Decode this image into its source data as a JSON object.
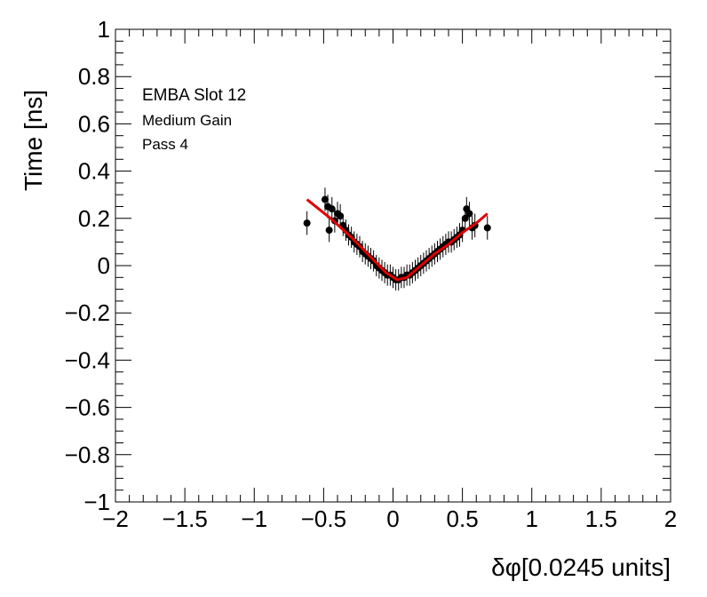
{
  "chart_data": {
    "type": "scatter",
    "xlabel": "δφ[0.0245 units]",
    "ylabel": "Time [ns]",
    "xlim": [
      -2,
      2
    ],
    "ylim": [
      -1,
      1
    ],
    "x_ticks": [
      "−2",
      "−1.5",
      "−1",
      "−0.5",
      "0",
      "0.5",
      "1",
      "1.5",
      "2"
    ],
    "y_ticks": [
      "1",
      "0.8",
      "0.6",
      "0.4",
      "0.2",
      "0",
      "−0.2",
      "−0.4",
      "−0.6",
      "−0.8",
      "−1"
    ],
    "grid": false,
    "annotations": [
      "EMBA Slot 12",
      "Medium Gain",
      "Pass 4"
    ],
    "fit_color": "#e00000",
    "marker_color": "#000000",
    "points": [
      {
        "x": -0.62,
        "y": 0.18,
        "err": 0.05
      },
      {
        "x": -0.49,
        "y": 0.28,
        "err": 0.05
      },
      {
        "x": -0.47,
        "y": 0.25,
        "err": 0.05
      },
      {
        "x": -0.46,
        "y": 0.15,
        "err": 0.05
      },
      {
        "x": -0.44,
        "y": 0.24,
        "err": 0.05
      },
      {
        "x": -0.42,
        "y": 0.19,
        "err": 0.05
      },
      {
        "x": -0.4,
        "y": 0.22,
        "err": 0.05
      },
      {
        "x": -0.38,
        "y": 0.21,
        "err": 0.05
      },
      {
        "x": -0.36,
        "y": 0.17,
        "err": 0.045
      },
      {
        "x": -0.34,
        "y": 0.15,
        "err": 0.045
      },
      {
        "x": -0.32,
        "y": 0.13,
        "err": 0.045
      },
      {
        "x": -0.3,
        "y": 0.12,
        "err": 0.045
      },
      {
        "x": -0.28,
        "y": 0.1,
        "err": 0.045
      },
      {
        "x": -0.26,
        "y": 0.09,
        "err": 0.045
      },
      {
        "x": -0.24,
        "y": 0.08,
        "err": 0.045
      },
      {
        "x": -0.22,
        "y": 0.06,
        "err": 0.045
      },
      {
        "x": -0.2,
        "y": 0.05,
        "err": 0.045
      },
      {
        "x": -0.18,
        "y": 0.04,
        "err": 0.045
      },
      {
        "x": -0.16,
        "y": 0.03,
        "err": 0.045
      },
      {
        "x": -0.14,
        "y": 0.02,
        "err": 0.045
      },
      {
        "x": -0.12,
        "y": 0.0,
        "err": 0.045
      },
      {
        "x": -0.1,
        "y": -0.01,
        "err": 0.045
      },
      {
        "x": -0.08,
        "y": -0.02,
        "err": 0.045
      },
      {
        "x": -0.06,
        "y": -0.03,
        "err": 0.045
      },
      {
        "x": -0.04,
        "y": -0.04,
        "err": 0.045
      },
      {
        "x": -0.02,
        "y": -0.04,
        "err": 0.045
      },
      {
        "x": 0.0,
        "y": -0.05,
        "err": 0.045
      },
      {
        "x": 0.02,
        "y": -0.06,
        "err": 0.045
      },
      {
        "x": 0.04,
        "y": -0.06,
        "err": 0.045
      },
      {
        "x": 0.06,
        "y": -0.05,
        "err": 0.045
      },
      {
        "x": 0.08,
        "y": -0.05,
        "err": 0.045
      },
      {
        "x": 0.1,
        "y": -0.04,
        "err": 0.045
      },
      {
        "x": 0.12,
        "y": -0.04,
        "err": 0.045
      },
      {
        "x": 0.14,
        "y": -0.03,
        "err": 0.045
      },
      {
        "x": 0.16,
        "y": -0.02,
        "err": 0.045
      },
      {
        "x": 0.18,
        "y": -0.01,
        "err": 0.045
      },
      {
        "x": 0.2,
        "y": 0.0,
        "err": 0.045
      },
      {
        "x": 0.22,
        "y": 0.01,
        "err": 0.045
      },
      {
        "x": 0.24,
        "y": 0.02,
        "err": 0.045
      },
      {
        "x": 0.26,
        "y": 0.03,
        "err": 0.045
      },
      {
        "x": 0.28,
        "y": 0.04,
        "err": 0.045
      },
      {
        "x": 0.3,
        "y": 0.05,
        "err": 0.045
      },
      {
        "x": 0.32,
        "y": 0.06,
        "err": 0.045
      },
      {
        "x": 0.34,
        "y": 0.07,
        "err": 0.045
      },
      {
        "x": 0.36,
        "y": 0.08,
        "err": 0.045
      },
      {
        "x": 0.38,
        "y": 0.09,
        "err": 0.045
      },
      {
        "x": 0.4,
        "y": 0.1,
        "err": 0.045
      },
      {
        "x": 0.42,
        "y": 0.1,
        "err": 0.045
      },
      {
        "x": 0.44,
        "y": 0.11,
        "err": 0.045
      },
      {
        "x": 0.46,
        "y": 0.12,
        "err": 0.045
      },
      {
        "x": 0.48,
        "y": 0.13,
        "err": 0.05
      },
      {
        "x": 0.5,
        "y": 0.15,
        "err": 0.05
      },
      {
        "x": 0.52,
        "y": 0.2,
        "err": 0.05
      },
      {
        "x": 0.53,
        "y": 0.24,
        "err": 0.05
      },
      {
        "x": 0.55,
        "y": 0.22,
        "err": 0.05
      },
      {
        "x": 0.57,
        "y": 0.16,
        "err": 0.05
      },
      {
        "x": 0.59,
        "y": 0.17,
        "err": 0.05
      },
      {
        "x": 0.68,
        "y": 0.16,
        "err": 0.05
      }
    ],
    "fit_line": [
      {
        "x": -0.62,
        "y": 0.28
      },
      {
        "x": -0.45,
        "y": 0.2
      },
      {
        "x": -0.3,
        "y": 0.12
      },
      {
        "x": -0.15,
        "y": 0.03
      },
      {
        "x": -0.05,
        "y": -0.03
      },
      {
        "x": 0.03,
        "y": -0.06
      },
      {
        "x": 0.1,
        "y": -0.05
      },
      {
        "x": 0.2,
        "y": 0.0
      },
      {
        "x": 0.3,
        "y": 0.05
      },
      {
        "x": 0.4,
        "y": 0.09
      },
      {
        "x": 0.5,
        "y": 0.14
      },
      {
        "x": 0.6,
        "y": 0.18
      },
      {
        "x": 0.68,
        "y": 0.22
      }
    ]
  }
}
